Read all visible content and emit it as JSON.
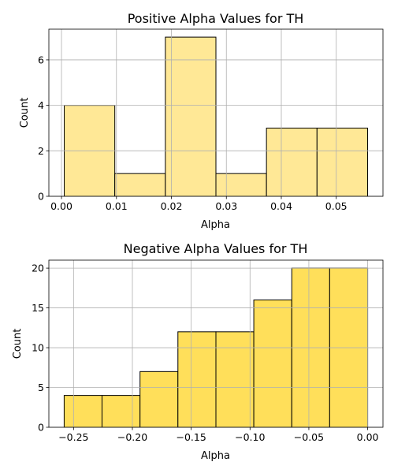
{
  "chart_data": [
    {
      "type": "bar",
      "subtype": "histogram",
      "title": "Positive Alpha Values for TH",
      "xlabel": "Alpha",
      "ylabel": "Count",
      "bin_edges": [
        0.0005,
        0.0097,
        0.0189,
        0.0281,
        0.0373,
        0.0465,
        0.0557
      ],
      "values": [
        4,
        1,
        7,
        1,
        3,
        3
      ],
      "xlim": [
        -0.0023,
        0.0585
      ],
      "ylim": [
        0,
        7.35
      ],
      "xticks": [
        0.0,
        0.01,
        0.02,
        0.03,
        0.04,
        0.05
      ],
      "xtick_labels": [
        "0.00",
        "0.01",
        "0.02",
        "0.03",
        "0.04",
        "0.05"
      ],
      "yticks": [
        0,
        2,
        4,
        6
      ],
      "ytick_labels": [
        "0",
        "2",
        "4",
        "6"
      ],
      "grid": true,
      "bar_color": "#ffe896",
      "edge_color": "#000000"
    },
    {
      "type": "bar",
      "subtype": "histogram",
      "title": "Negative Alpha Values for TH",
      "xlabel": "Alpha",
      "ylabel": "Count",
      "bin_edges": [
        -0.258,
        -0.2258,
        -0.1935,
        -0.1613,
        -0.129,
        -0.0968,
        -0.0645,
        -0.0323,
        0.0
      ],
      "values": [
        4,
        4,
        7,
        12,
        12,
        16,
        20,
        20
      ],
      "xlim": [
        -0.271,
        0.013
      ],
      "ylim": [
        0,
        21
      ],
      "xticks": [
        -0.25,
        -0.2,
        -0.15,
        -0.1,
        -0.05,
        0.0
      ],
      "xtick_labels": [
        "−0.25",
        "−0.20",
        "−0.15",
        "−0.10",
        "−0.05",
        "0.00"
      ],
      "yticks": [
        0,
        5,
        10,
        15,
        20
      ],
      "ytick_labels": [
        "0",
        "5",
        "10",
        "15",
        "20"
      ],
      "grid": true,
      "bar_color": "#ffdf5a",
      "edge_color": "#000000"
    }
  ]
}
